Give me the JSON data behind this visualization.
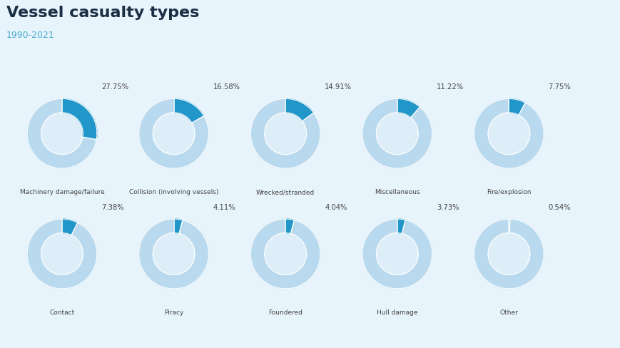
{
  "title": "Vessel casualty types",
  "subtitle": "1990-2021",
  "title_color": "#1a2e44",
  "subtitle_color": "#4aaccc",
  "background_color": "#e8f4fb",
  "donut_bg_color": "#b8d9ee",
  "donut_active_color": "#2196c8",
  "donut_center_color": "#ddeef8",
  "label_color": "#444444",
  "pct_color": "#444444",
  "categories": [
    "Machinery damage/failure",
    "Collision (involving vessels)",
    "Wrecked/stranded",
    "Miscellaneous",
    "Fire/explosion",
    "Contact",
    "Piracy",
    "Foundered",
    "Hull damage",
    "Other"
  ],
  "values": [
    27.75,
    16.58,
    14.91,
    11.22,
    7.75,
    7.38,
    4.11,
    4.04,
    3.73,
    0.54
  ]
}
